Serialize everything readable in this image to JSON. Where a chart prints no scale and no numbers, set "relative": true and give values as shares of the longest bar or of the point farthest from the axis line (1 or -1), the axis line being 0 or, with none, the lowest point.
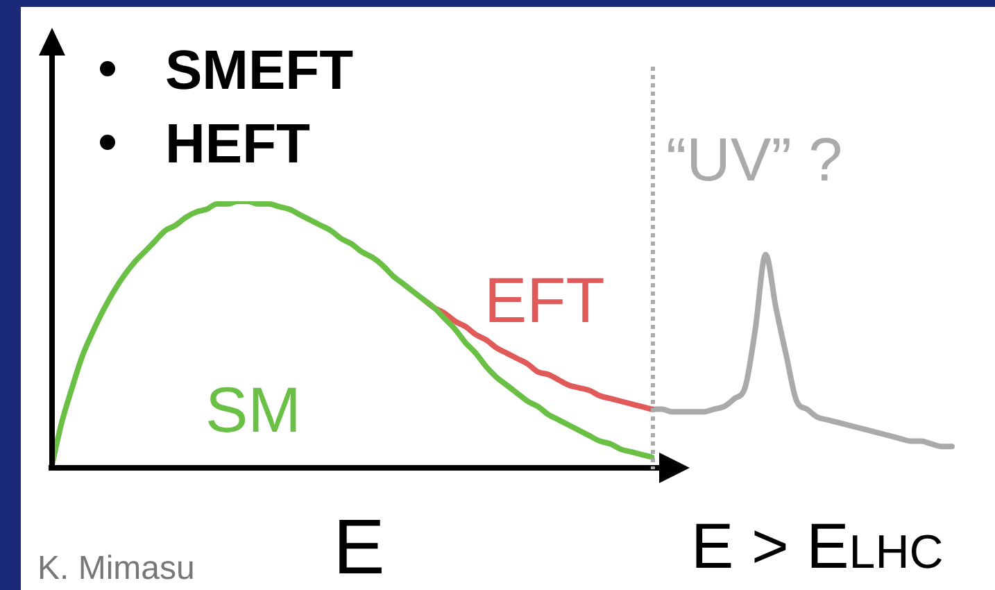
{
  "chart_data": {
    "type": "line",
    "relative": true,
    "xlabel": "E",
    "marker": "none",
    "line_style": "solid",
    "categories": [
      null,
      null,
      null,
      null,
      null,
      null,
      null,
      null,
      null,
      null,
      null,
      null,
      null,
      null,
      null,
      null,
      null,
      null,
      null,
      null,
      null,
      null,
      null,
      null,
      null,
      null,
      null,
      null,
      null,
      null,
      null,
      null,
      null,
      null,
      null,
      null,
      null,
      null,
      null,
      null,
      null,
      null,
      null,
      null,
      null,
      null,
      null,
      null,
      null,
      null,
      null,
      null,
      null,
      null,
      null,
      null,
      null,
      null,
      null,
      null,
      null,
      null,
      null,
      null,
      null,
      null,
      null,
      null,
      null,
      null,
      null,
      null,
      null,
      null,
      null,
      null,
      null,
      null,
      null,
      null,
      null,
      null,
      null,
      null,
      null,
      null,
      null,
      null
    ],
    "series": [
      {
        "name": "SM",
        "color": "#6abf45",
        "values": [
          0,
          0.17,
          0.3,
          0.42,
          0.51,
          0.59,
          0.66,
          0.72,
          0.77,
          0.81,
          0.85,
          0.89,
          0.91,
          0.94,
          0.96,
          0.97,
          0.99,
          0.99,
          1,
          1,
          0.99,
          0.99,
          0.98,
          0.97,
          0.95,
          0.93,
          0.91,
          0.89,
          0.86,
          0.84,
          0.81,
          0.79,
          0.76,
          0.72,
          0.69,
          0.66,
          0.63,
          0.6,
          0.56,
          0.52,
          0.47,
          0.43,
          0.38,
          0.34,
          0.31,
          0.28,
          0.25,
          0.23,
          0.2,
          0.18,
          0.16,
          0.14,
          0.12,
          0.1,
          0.09,
          0.07,
          0.06,
          0.05,
          0.04,
          null,
          null,
          null,
          null,
          null,
          null,
          null,
          null,
          null,
          null,
          null,
          null,
          null,
          null,
          null,
          null,
          null,
          null,
          null,
          null,
          null,
          null,
          null,
          null,
          null,
          null,
          null,
          null,
          null
        ]
      },
      {
        "name": "EFT",
        "color": "#e05a5a",
        "values": [
          null,
          null,
          null,
          null,
          null,
          null,
          null,
          null,
          null,
          null,
          null,
          null,
          null,
          null,
          null,
          null,
          null,
          null,
          null,
          null,
          null,
          null,
          null,
          null,
          null,
          null,
          null,
          null,
          null,
          null,
          null,
          null,
          null,
          null,
          null,
          null,
          0.63,
          0.6,
          0.58,
          0.55,
          0.53,
          0.5,
          0.48,
          0.45,
          0.43,
          0.41,
          0.39,
          0.36,
          0.35,
          0.33,
          0.31,
          0.3,
          0.29,
          0.27,
          0.26,
          0.25,
          0.24,
          0.23,
          0.22,
          null,
          null,
          null,
          null,
          null,
          null,
          null,
          null,
          null,
          null,
          null,
          null,
          null,
          null,
          null,
          null,
          null,
          null,
          null,
          null,
          null,
          null,
          null,
          null,
          null,
          null,
          null,
          null,
          null
        ]
      },
      {
        "name": "“UV” ?",
        "color": "#aaaaaa",
        "values": [
          null,
          null,
          null,
          null,
          null,
          null,
          null,
          null,
          null,
          null,
          null,
          null,
          null,
          null,
          null,
          null,
          null,
          null,
          null,
          null,
          null,
          null,
          null,
          null,
          null,
          null,
          null,
          null,
          null,
          null,
          null,
          null,
          null,
          null,
          null,
          null,
          null,
          null,
          null,
          null,
          null,
          null,
          null,
          null,
          null,
          null,
          null,
          null,
          null,
          null,
          null,
          null,
          null,
          null,
          null,
          null,
          null,
          null,
          0.22,
          0.22,
          0.21,
          0.21,
          0.21,
          0.21,
          0.22,
          0.23,
          0.26,
          0.3,
          0.52,
          0.8,
          0.6,
          0.42,
          0.25,
          0.22,
          0.19,
          0.18,
          0.17,
          0.16,
          0.15,
          0.14,
          0.13,
          0.12,
          0.11,
          0.1,
          0.1,
          0.09,
          0.08,
          0.08
        ]
      }
    ],
    "annotations": [
      "SMEFT",
      "HEFT",
      "E > E$_{LHC}$",
      "K. Mimasu"
    ]
  }
}
